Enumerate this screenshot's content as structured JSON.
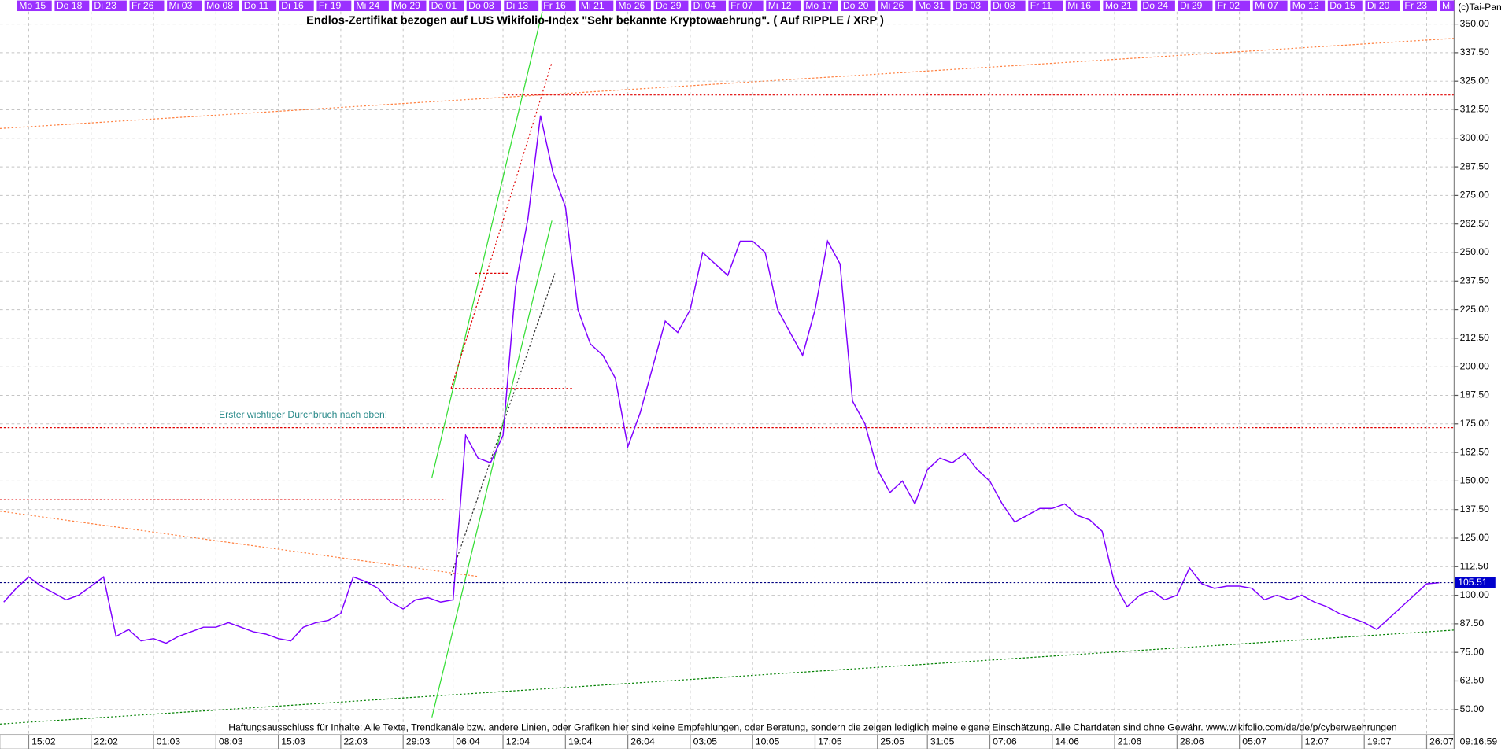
{
  "chart_data": {
    "type": "line",
    "title": "Endlos-Zertifikat bezogen auf LUS Wikifolio-Index \"Sehr bekannte Kryptowaehrung\". ( Auf RIPPLE / XRP )",
    "copyright": "(c)Tai-Pan",
    "annotation": "Erster wichtiger Durchbruch nach oben!",
    "disclaimer": "Haftungsausschluss für Inhalte: Alle Texte, Trendkanäle bzw. andere Linien, oder Grafiken hier sind keine Empfehlungen, oder Beratung, sondern die zeigen lediglich meine eigene Einschätzung. Alle Chartdaten sind ohne Gewähr.  www.wikifolio.com/de/de/p/cyberwaehrungen",
    "time": "09:16:59",
    "current_value": {
      "value": 105.51,
      "label": "105.51"
    },
    "grid": true,
    "series": [
      {
        "name": "RIPPLE / XRP",
        "color": "#7f00ff",
        "values": [
          97,
          103,
          108,
          104,
          101,
          98,
          100,
          104,
          108,
          82,
          85,
          80,
          81,
          79,
          82,
          84,
          86,
          86,
          88,
          86,
          84,
          83,
          81,
          80,
          86,
          88,
          89,
          92,
          108,
          106,
          103,
          97,
          94,
          98,
          99,
          97,
          98,
          170,
          160,
          158,
          170,
          235,
          265,
          310,
          285,
          270,
          225,
          210,
          205,
          195,
          165,
          180,
          200,
          220,
          215,
          225,
          250,
          245,
          240,
          255,
          255,
          250,
          225,
          215,
          205,
          225,
          255,
          245,
          185,
          175,
          155,
          145,
          150,
          140,
          155,
          160,
          158,
          162,
          155,
          150,
          140,
          132,
          135,
          138,
          138,
          140,
          135,
          133,
          128,
          105,
          95,
          100,
          102,
          98,
          100,
          112,
          105,
          103,
          104,
          104,
          103,
          98,
          100,
          98,
          100,
          97,
          95,
          92,
          90,
          88,
          85,
          90,
          95,
          100,
          105,
          105.51
        ]
      }
    ],
    "xlim": [
      -0.3,
      116.2
    ],
    "ylim": [
      39,
      355.5
    ],
    "yticks": [
      {
        "value": 50,
        "label": "50.00"
      },
      {
        "value": 62.5,
        "label": "62.50"
      },
      {
        "value": 75,
        "label": "75.00"
      },
      {
        "value": 87.5,
        "label": "87.50"
      },
      {
        "value": 100,
        "label": "100.00"
      },
      {
        "value": 112.5,
        "label": "112.50"
      },
      {
        "value": 125,
        "label": "125.00"
      },
      {
        "value": 137.5,
        "label": "137.50"
      },
      {
        "value": 150,
        "label": "150.00"
      },
      {
        "value": 162.5,
        "label": "162.50"
      },
      {
        "value": 175,
        "label": "175.00"
      },
      {
        "value": 187.5,
        "label": "187.50"
      },
      {
        "value": 200,
        "label": "200.00"
      },
      {
        "value": 212.5,
        "label": "212.50"
      },
      {
        "value": 225,
        "label": "225.00"
      },
      {
        "value": 237.5,
        "label": "237.50"
      },
      {
        "value": 250,
        "label": "250.00"
      },
      {
        "value": 262.5,
        "label": "262.50"
      },
      {
        "value": 275,
        "label": "275.00"
      },
      {
        "value": 287.5,
        "label": "287.50"
      },
      {
        "value": 300,
        "label": "300.00"
      },
      {
        "value": 312.5,
        "label": "312.50"
      },
      {
        "value": 325,
        "label": "325.00"
      },
      {
        "value": 337.5,
        "label": "337.50"
      },
      {
        "value": 350,
        "label": "350.00"
      }
    ],
    "xticks": [
      {
        "value": 2,
        "label": "15:02"
      },
      {
        "value": 7,
        "label": "22:02"
      },
      {
        "value": 12,
        "label": "01:03"
      },
      {
        "value": 17,
        "label": "08:03"
      },
      {
        "value": 22,
        "label": "15:03"
      },
      {
        "value": 27,
        "label": "22:03"
      },
      {
        "value": 32,
        "label": "29:03"
      },
      {
        "value": 36,
        "label": "06:04"
      },
      {
        "value": 40,
        "label": "12:04"
      },
      {
        "value": 45,
        "label": "19:04"
      },
      {
        "value": 50,
        "label": "26:04"
      },
      {
        "value": 55,
        "label": "03:05"
      },
      {
        "value": 60,
        "label": "10:05"
      },
      {
        "value": 65,
        "label": "17:05"
      },
      {
        "value": 70,
        "label": "25:05"
      },
      {
        "value": 74,
        "label": "31:05"
      },
      {
        "value": 79,
        "label": "07:06"
      },
      {
        "value": 84,
        "label": "14:06"
      },
      {
        "value": 89,
        "label": "21:06"
      },
      {
        "value": 94,
        "label": "28:06"
      },
      {
        "value": 99,
        "label": "05:07"
      },
      {
        "value": 104,
        "label": "12:07"
      },
      {
        "value": 109,
        "label": "19:07"
      },
      {
        "value": 114,
        "label": "26:07"
      }
    ],
    "xticks_top": [
      {
        "value": 2,
        "label": "Mo 15"
      },
      {
        "value": 5,
        "label": "Do 18"
      },
      {
        "value": 8,
        "label": "Di 23"
      },
      {
        "value": 11,
        "label": "Fr 26"
      },
      {
        "value": 14,
        "label": "Mi 03"
      },
      {
        "value": 17,
        "label": "Mo 08"
      },
      {
        "value": 20,
        "label": "Do 11"
      },
      {
        "value": 23,
        "label": "Di 16"
      },
      {
        "value": 26,
        "label": "Fr 19"
      },
      {
        "value": 29,
        "label": "Mi 24"
      },
      {
        "value": 32,
        "label": "Mo 29"
      },
      {
        "value": 35,
        "label": "Do 01"
      },
      {
        "value": 38,
        "label": "Do 08"
      },
      {
        "value": 41,
        "label": "Di 13"
      },
      {
        "value": 44,
        "label": "Fr 16"
      },
      {
        "value": 47,
        "label": "Mi 21"
      },
      {
        "value": 50,
        "label": "Mo 26"
      },
      {
        "value": 53,
        "label": "Do 29"
      },
      {
        "value": 56,
        "label": "Di 04"
      },
      {
        "value": 59,
        "label": "Fr 07"
      },
      {
        "value": 62,
        "label": "Mi 12"
      },
      {
        "value": 65,
        "label": "Mo 17"
      },
      {
        "value": 68,
        "label": "Do 20"
      },
      {
        "value": 71,
        "label": "Mi 26"
      },
      {
        "value": 74,
        "label": "Mo 31"
      },
      {
        "value": 77,
        "label": "Do 03"
      },
      {
        "value": 80,
        "label": "Di 08"
      },
      {
        "value": 83,
        "label": "Fr 11"
      },
      {
        "value": 86,
        "label": "Mi 16"
      },
      {
        "value": 89,
        "label": "Mo 21"
      },
      {
        "value": 92,
        "label": "Do 24"
      },
      {
        "value": 95,
        "label": "Di 29"
      },
      {
        "value": 98,
        "label": "Fr 02"
      },
      {
        "value": 101,
        "label": "Mi 07"
      },
      {
        "value": 104,
        "label": "Mo 12"
      },
      {
        "value": 107,
        "label": "Do 15"
      },
      {
        "value": 110,
        "label": "Di 20"
      },
      {
        "value": 113,
        "label": "Fr 23"
      },
      {
        "value": 116,
        "label": "Mi"
      }
    ]
  }
}
